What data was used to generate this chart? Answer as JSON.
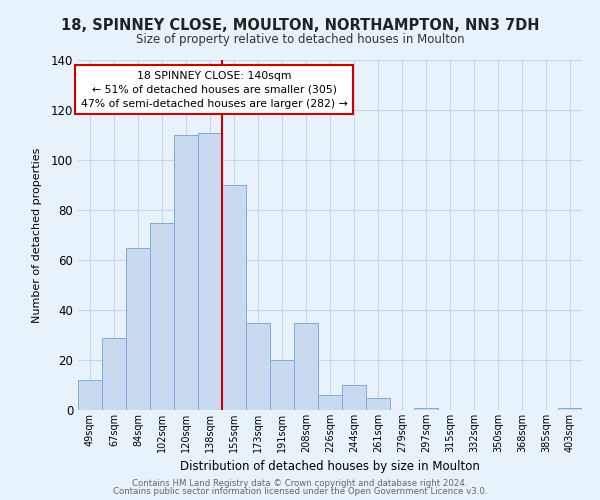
{
  "title1": "18, SPINNEY CLOSE, MOULTON, NORTHAMPTON, NN3 7DH",
  "title2": "Size of property relative to detached houses in Moulton",
  "xlabel": "Distribution of detached houses by size in Moulton",
  "ylabel": "Number of detached properties",
  "bar_labels": [
    "49sqm",
    "67sqm",
    "84sqm",
    "102sqm",
    "120sqm",
    "138sqm",
    "155sqm",
    "173sqm",
    "191sqm",
    "208sqm",
    "226sqm",
    "244sqm",
    "261sqm",
    "279sqm",
    "297sqm",
    "315sqm",
    "332sqm",
    "350sqm",
    "368sqm",
    "385sqm",
    "403sqm"
  ],
  "bar_values": [
    12,
    29,
    65,
    75,
    110,
    111,
    90,
    35,
    20,
    35,
    6,
    10,
    5,
    0,
    1,
    0,
    0,
    0,
    0,
    0,
    1
  ],
  "bar_color": "#c9d9f0",
  "bar_edge_color": "#7eacd4",
  "vline_color": "#cc0000",
  "vline_x": 5.5,
  "annotation_text": "18 SPINNEY CLOSE: 140sqm\n← 51% of detached houses are smaller (305)\n47% of semi-detached houses are larger (282) →",
  "annotation_box_color": "#ffffff",
  "annotation_box_edge": "#cc0000",
  "ylim": [
    0,
    140
  ],
  "yticks": [
    0,
    20,
    40,
    60,
    80,
    100,
    120,
    140
  ],
  "footer1": "Contains HM Land Registry data © Crown copyright and database right 2024.",
  "footer2": "Contains public sector information licensed under the Open Government Licence v3.0.",
  "grid_color": "#c5d8ee",
  "background_color": "#e8f2fb"
}
